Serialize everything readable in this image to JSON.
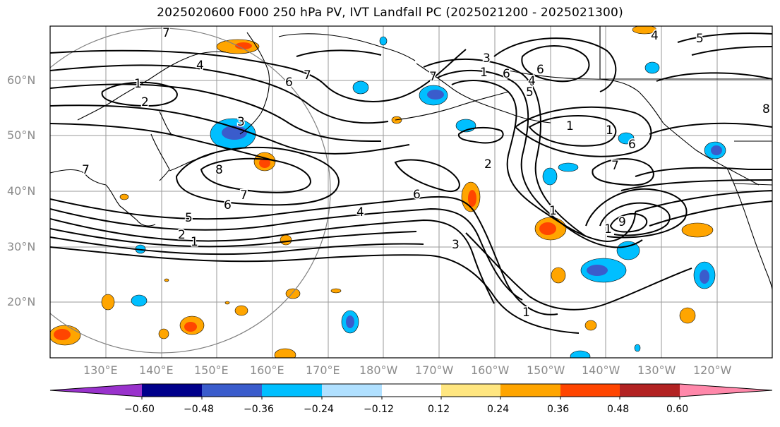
{
  "title": "2025020600 F000 250 hPa PV, IVT Landfall PC (2025021200 - 2025021300)",
  "map": {
    "lat_labels": [
      "60°N",
      "50°N",
      "40°N",
      "30°N",
      "20°N"
    ],
    "lon_labels": [
      "130°E",
      "140°E",
      "150°E",
      "160°E",
      "170°E",
      "180°W",
      "170°W",
      "160°W",
      "150°W",
      "140°W",
      "130°W",
      "120°W"
    ],
    "contour_labels": [
      "7",
      "4",
      "1",
      "2",
      "3",
      "8",
      "7",
      "6",
      "5",
      "2",
      "1",
      "6",
      "7",
      "3",
      "1",
      "7",
      "6",
      "6",
      "5",
      "4",
      "1",
      "1",
      "6",
      "2",
      "6",
      "4",
      "3",
      "1",
      "7",
      "9",
      "1",
      "4",
      "5",
      "7",
      "1",
      "8"
    ]
  },
  "colorbar": {
    "tick_labels": [
      "−0.60",
      "−0.48",
      "−0.36",
      "−0.24",
      "−0.12",
      "0.12",
      "0.24",
      "0.36",
      "0.48",
      "0.60"
    ],
    "colors": [
      "#9932cc",
      "#00008b",
      "#3a5ccc",
      "#00bfff",
      "#b0e0ff",
      "#ffffff",
      "#ffe680",
      "#ffa500",
      "#ff4500",
      "#b22222",
      "#ff88aa"
    ]
  }
}
